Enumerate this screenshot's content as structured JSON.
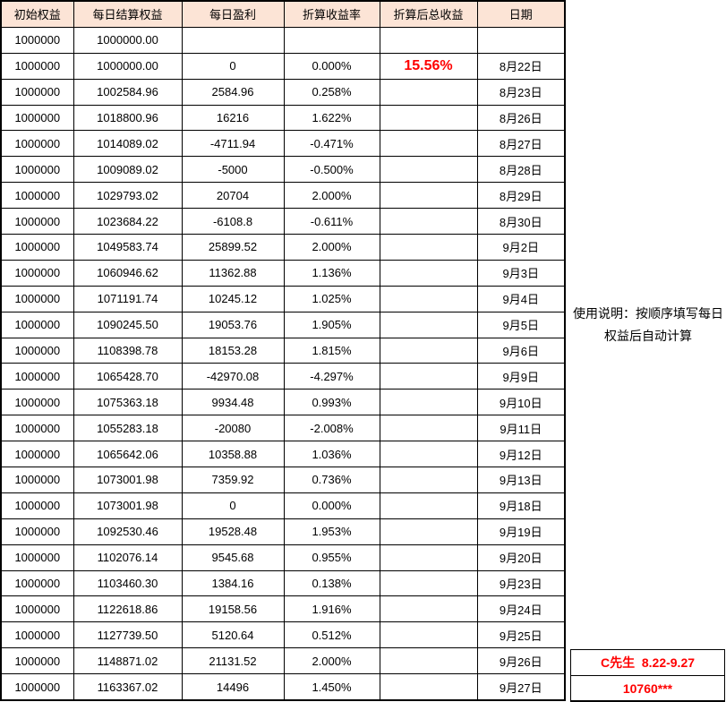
{
  "table": {
    "headers": [
      "初始权益",
      "每日结算权益",
      "每日盈利",
      "折算收益率",
      "折算后总收益",
      "日期"
    ],
    "rows": [
      [
        "1000000",
        "1000000.00",
        "",
        "",
        "",
        ""
      ],
      [
        "1000000",
        "1000000.00",
        "0",
        "0.000%",
        "15.56%",
        "8月22日"
      ],
      [
        "1000000",
        "1002584.96",
        "2584.96",
        "0.258%",
        "",
        "8月23日"
      ],
      [
        "1000000",
        "1018800.96",
        "16216",
        "1.622%",
        "",
        "8月26日"
      ],
      [
        "1000000",
        "1014089.02",
        "-4711.94",
        "-0.471%",
        "",
        "8月27日"
      ],
      [
        "1000000",
        "1009089.02",
        "-5000",
        "-0.500%",
        "",
        "8月28日"
      ],
      [
        "1000000",
        "1029793.02",
        "20704",
        "2.000%",
        "",
        "8月29日"
      ],
      [
        "1000000",
        "1023684.22",
        "-6108.8",
        "-0.611%",
        "",
        "8月30日"
      ],
      [
        "1000000",
        "1049583.74",
        "25899.52",
        "2.000%",
        "",
        "9月2日"
      ],
      [
        "1000000",
        "1060946.62",
        "11362.88",
        "1.136%",
        "",
        "9月3日"
      ],
      [
        "1000000",
        "1071191.74",
        "10245.12",
        "1.025%",
        "",
        "9月4日"
      ],
      [
        "1000000",
        "1090245.50",
        "19053.76",
        "1.905%",
        "",
        "9月5日"
      ],
      [
        "1000000",
        "1108398.78",
        "18153.28",
        "1.815%",
        "",
        "9月6日"
      ],
      [
        "1000000",
        "1065428.70",
        "-42970.08",
        "-4.297%",
        "",
        "9月9日"
      ],
      [
        "1000000",
        "1075363.18",
        "9934.48",
        "0.993%",
        "",
        "9月10日"
      ],
      [
        "1000000",
        "1055283.18",
        "-20080",
        "-2.008%",
        "",
        "9月11日"
      ],
      [
        "1000000",
        "1065642.06",
        "10358.88",
        "1.036%",
        "",
        "9月12日"
      ],
      [
        "1000000",
        "1073001.98",
        "7359.92",
        "0.736%",
        "",
        "9月13日"
      ],
      [
        "1000000",
        "1073001.98",
        "0",
        "0.000%",
        "",
        "9月18日"
      ],
      [
        "1000000",
        "1092530.46",
        "19528.48",
        "1.953%",
        "",
        "9月19日"
      ],
      [
        "1000000",
        "1102076.14",
        "9545.68",
        "0.955%",
        "",
        "9月20日"
      ],
      [
        "1000000",
        "1103460.30",
        "1384.16",
        "0.138%",
        "",
        "9月23日"
      ],
      [
        "1000000",
        "1122618.86",
        "19158.56",
        "1.916%",
        "",
        "9月24日"
      ],
      [
        "1000000",
        "1127739.50",
        "5120.64",
        "0.512%",
        "",
        "9月25日"
      ],
      [
        "1000000",
        "1148871.02",
        "21131.52",
        "2.000%",
        "",
        "9月26日"
      ],
      [
        "1000000",
        "1163367.02",
        "14496",
        "1.450%",
        "",
        "9月27日"
      ]
    ]
  },
  "side_panel": {
    "usage_note": "使用说明：按顺序填写每日权益后自动计算",
    "account_label": "C先生  8.22-9.27",
    "account_value": "10760***"
  },
  "colors": {
    "header_bg": "#FCE4D6",
    "accent_red": "#FF0000",
    "grid": "#000000"
  }
}
